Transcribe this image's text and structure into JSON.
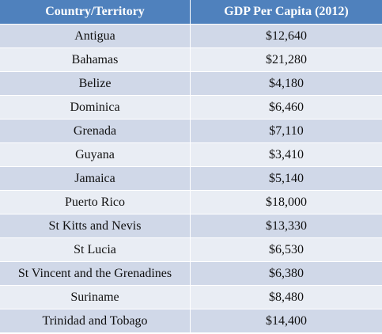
{
  "table": {
    "headers": [
      "Country/Territory",
      "GDP Per Capita (2012)"
    ],
    "rows": [
      [
        "Antigua",
        "$12,640"
      ],
      [
        "Bahamas",
        "$21,280"
      ],
      [
        "Belize",
        "$4,180"
      ],
      [
        "Dominica",
        "$6,460"
      ],
      [
        "Grenada",
        "$7,110"
      ],
      [
        "Guyana",
        "$3,410"
      ],
      [
        "Jamaica",
        "$5,140"
      ],
      [
        "Puerto Rico",
        "$18,000"
      ],
      [
        "St Kitts and Nevis",
        "$13,330"
      ],
      [
        "St Lucia",
        "$6,530"
      ],
      [
        "St Vincent and the Grenadines",
        "$6,380"
      ],
      [
        "Suriname",
        "$8,480"
      ],
      [
        "Trinidad and Tobago",
        "$14,400"
      ]
    ]
  },
  "colors": {
    "header_bg": "#4f81bd",
    "row_dark": "#d0d8e8",
    "row_light": "#e9edf4"
  }
}
